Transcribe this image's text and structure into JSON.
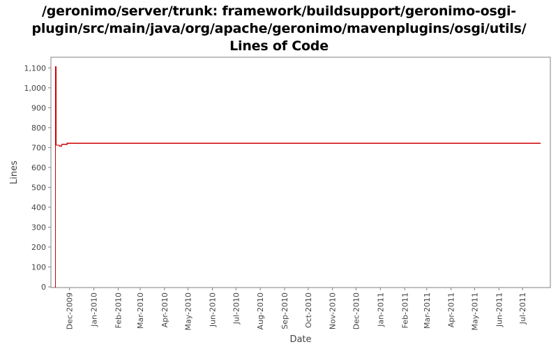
{
  "chart_data": {
    "type": "line",
    "title_lines": [
      "/geronimo/server/trunk: framework/buildsupport/geronimo-osgi-",
      "plugin/src/main/java/org/apache/geronimo/mavenplugins/osgi/utils/",
      "Lines of Code"
    ],
    "xlabel": "Date",
    "ylabel": "Lines",
    "ylim": [
      0,
      1150
    ],
    "xlim": [
      "2009-11-10",
      "2011-07-24"
    ],
    "y_ticks": [
      {
        "value": 0,
        "label": "0"
      },
      {
        "value": 100,
        "label": "100"
      },
      {
        "value": 200,
        "label": "200"
      },
      {
        "value": 300,
        "label": "300"
      },
      {
        "value": 400,
        "label": "400"
      },
      {
        "value": 500,
        "label": "500"
      },
      {
        "value": 600,
        "label": "600"
      },
      {
        "value": 700,
        "label": "700"
      },
      {
        "value": 800,
        "label": "800"
      },
      {
        "value": 900,
        "label": "900"
      },
      {
        "value": 1000,
        "label": "1,000"
      },
      {
        "value": 1100,
        "label": "1,100"
      }
    ],
    "x_ticks": [
      {
        "date": "2009-12-01",
        "label": "Dec-2009"
      },
      {
        "date": "2010-01-01",
        "label": "Jan-2010"
      },
      {
        "date": "2010-02-01",
        "label": "Feb-2010"
      },
      {
        "date": "2010-03-01",
        "label": "Mar-2010"
      },
      {
        "date": "2010-04-01",
        "label": "Apr-2010"
      },
      {
        "date": "2010-05-01",
        "label": "May-2010"
      },
      {
        "date": "2010-06-01",
        "label": "Jun-2010"
      },
      {
        "date": "2010-07-01",
        "label": "Jul-2010"
      },
      {
        "date": "2010-08-01",
        "label": "Aug-2010"
      },
      {
        "date": "2010-09-01",
        "label": "Sep-2010"
      },
      {
        "date": "2010-10-01",
        "label": "Oct-2010"
      },
      {
        "date": "2010-11-01",
        "label": "Nov-2010"
      },
      {
        "date": "2010-12-01",
        "label": "Dec-2010"
      },
      {
        "date": "2011-01-01",
        "label": "Jan-2011"
      },
      {
        "date": "2011-02-01",
        "label": "Feb-2011"
      },
      {
        "date": "2011-03-01",
        "label": "Mar-2011"
      },
      {
        "date": "2011-04-01",
        "label": "Apr-2011"
      },
      {
        "date": "2011-05-01",
        "label": "May-2011"
      },
      {
        "date": "2011-06-01",
        "label": "Jun-2011"
      },
      {
        "date": "2011-07-01",
        "label": "Jul-2011"
      }
    ],
    "series": [
      {
        "color": "#cc0000",
        "step": true,
        "points": [
          {
            "x": "2009-11-12",
            "y": 0
          },
          {
            "x": "2009-11-13",
            "y": 1105
          },
          {
            "x": "2009-11-14",
            "y": 712
          },
          {
            "x": "2009-11-18",
            "y": 708
          },
          {
            "x": "2009-11-21",
            "y": 716
          },
          {
            "x": "2009-11-28",
            "y": 722
          },
          {
            "x": "2011-07-24",
            "y": 722
          }
        ]
      }
    ],
    "grid": false,
    "legend": "none"
  },
  "colors": {
    "axis": "#808080",
    "tick_text": "#444444",
    "plot_background": "#ffffff"
  }
}
